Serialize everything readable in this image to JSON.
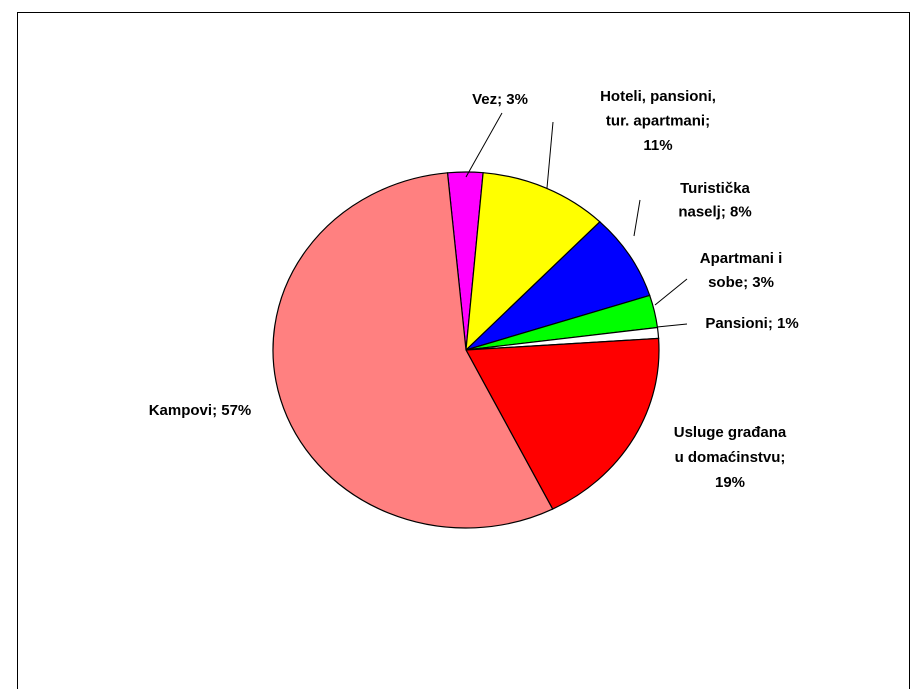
{
  "chart_data": {
    "type": "pie",
    "values": [
      3,
      11,
      8,
      3,
      1,
      19,
      57
    ],
    "value_labels": [
      [
        "Vez; 3%"
      ],
      [
        "Hoteli, pansioni,",
        "tur. apartmani;",
        "11%"
      ],
      [
        "Turistička",
        "naselj; 8%"
      ],
      [
        "Apartmani i",
        "sobe; 3%"
      ],
      [
        "Pansioni; 1%"
      ],
      [
        "Usluge građana",
        "u domaćinstvu;",
        "19%"
      ],
      [
        "Kampovi; 57%"
      ]
    ],
    "colors": [
      "#ff00ff",
      "#ffff00",
      "#0000ff",
      "#00ff00",
      "#ffffff",
      "#ff0000",
      "#ff8080"
    ]
  }
}
